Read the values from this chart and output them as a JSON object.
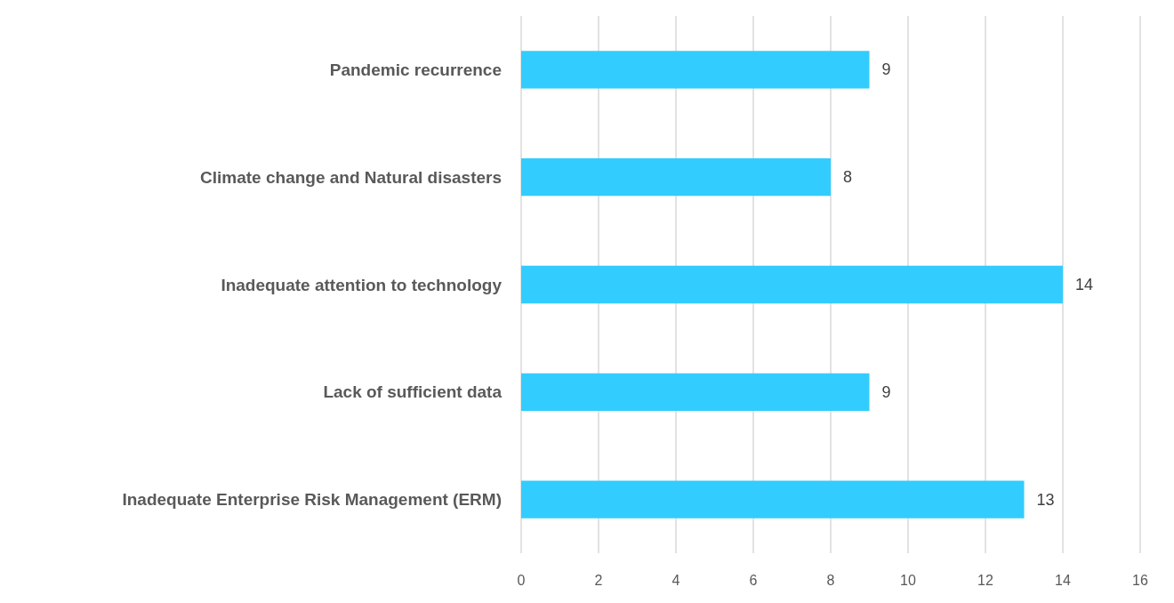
{
  "chart_data": {
    "type": "bar",
    "orientation": "horizontal",
    "categories": [
      "Pandemic recurrence",
      "Climate change and Natural disasters",
      "Inadequate attention to technology",
      "Lack of sufficient data",
      "Inadequate Enterprise Risk Management (ERM)"
    ],
    "values": [
      9,
      8,
      14,
      9,
      13
    ],
    "color": "#33ccff",
    "xlim": [
      0,
      16
    ],
    "xticks": [
      0,
      2,
      4,
      6,
      8,
      10,
      12,
      14,
      16
    ],
    "grid": "x",
    "data_labels": true
  }
}
